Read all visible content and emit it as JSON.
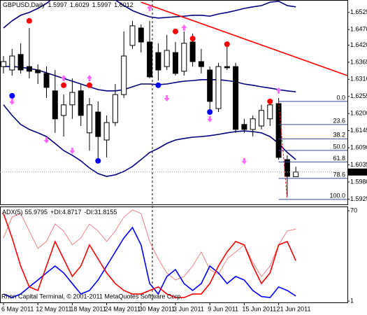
{
  "chart_data": [
    {
      "type": "candlestick",
      "title": "GBPUSD,Daily",
      "categories": [
        "6 May 2011",
        null,
        null,
        null,
        "12 May 2011",
        null,
        null,
        null,
        "18 May 2011",
        null,
        null,
        null,
        "24 May 2011",
        null,
        null,
        null,
        "30 May 2011",
        null,
        null,
        null,
        "3 Jun 2011",
        null,
        null,
        null,
        "9 Jun 2011",
        null,
        null,
        null,
        "15 Jun 2011",
        null,
        null,
        null,
        "21 Jun 2011",
        null,
        null
      ],
      "open": [
        1.6351,
        1.634,
        1.639,
        1.6351,
        1.634,
        1.6329,
        1.6273,
        1.6194,
        1.6228,
        1.6273,
        1.6138,
        1.6205,
        1.6115,
        1.6171,
        1.6261,
        1.6419,
        1.6475,
        1.643,
        1.6396,
        1.6351,
        1.6396,
        1.6336,
        1.643,
        1.6367,
        1.634,
        1.6216,
        1.6351,
        1.6351,
        1.6165,
        1.6149,
        1.616,
        1.6183,
        1.6232,
        1.6052,
        1.5997
      ],
      "high": [
        1.6385,
        1.6408,
        1.6426,
        1.6475,
        1.6358,
        1.6351,
        1.634,
        1.6261,
        1.6313,
        1.6295,
        1.625,
        1.6239,
        1.6194,
        1.6295,
        1.6464,
        1.6498,
        1.6486,
        1.6498,
        1.6426,
        1.6453,
        1.643,
        1.6464,
        1.6457,
        1.6408,
        1.6351,
        1.6363,
        1.6419,
        1.6363,
        1.6183,
        1.6194,
        1.6228,
        1.6239,
        1.625,
        1.6066,
        1.6029
      ],
      "low": [
        1.6329,
        1.6322,
        1.6329,
        1.6313,
        1.6295,
        1.625,
        1.6138,
        1.6126,
        1.6183,
        1.616,
        1.6081,
        1.6048,
        1.6059,
        1.616,
        1.625,
        1.6408,
        1.6396,
        1.6313,
        1.6306,
        1.634,
        1.6322,
        1.6322,
        1.6351,
        1.6329,
        1.6205,
        1.6205,
        1.634,
        1.6138,
        1.6138,
        1.6126,
        1.6149,
        1.616,
        1.6052,
        1.5935,
        1.5997
      ],
      "close": [
        1.6367,
        1.6385,
        1.634,
        1.6336,
        1.6331,
        1.6284,
        1.6183,
        1.6228,
        1.6268,
        1.6194,
        1.6228,
        1.6126,
        1.6171,
        1.6261,
        1.6385,
        1.6482,
        1.643,
        1.6318,
        1.634,
        1.6403,
        1.6329,
        1.6426,
        1.6367,
        1.6351,
        1.6239,
        1.6351,
        1.6347,
        1.6149,
        1.6149,
        1.6183,
        1.621,
        1.6228,
        1.6059,
        1.5998,
        1.6012
      ],
      "up_color": "#ffffff",
      "down_color": "#000000",
      "bands": [
        {
          "color": "#000080",
          "values": [
            1.6475,
            1.6498,
            1.6516,
            1.6525,
            1.6538,
            1.6554,
            1.6576,
            1.6588,
            1.6592,
            1.6592,
            1.6588,
            1.6583,
            1.6576,
            1.6565,
            1.6547,
            1.6531,
            1.652,
            1.6511,
            1.6507,
            1.6509,
            1.6511,
            1.6513,
            1.6516,
            1.6516,
            1.6513,
            1.652,
            1.6525,
            1.6531,
            1.6538,
            1.6543,
            1.6547,
            1.6558,
            1.6561,
            1.6547,
            1.6543
          ]
        },
        {
          "color": "#000080",
          "values": [
            1.6351,
            1.6351,
            1.6349,
            1.6345,
            1.634,
            1.6331,
            1.6322,
            1.6313,
            1.6304,
            1.6295,
            1.6286,
            1.6277,
            1.6273,
            1.6273,
            1.6277,
            1.6286,
            1.6295,
            1.6295,
            1.6293,
            1.6295,
            1.63,
            1.6304,
            1.6306,
            1.6309,
            1.6309,
            1.6309,
            1.6306,
            1.6302,
            1.6295,
            1.6291,
            1.6286,
            1.6282,
            1.6277,
            1.6273,
            1.627
          ]
        },
        {
          "color": "#000080",
          "values": [
            1.6228,
            1.6194,
            1.6165,
            1.6149,
            1.6138,
            1.6126,
            1.6104,
            1.6081,
            1.6066,
            1.6048,
            1.6025,
            1.6007,
            1.5998,
            1.6003,
            1.6014,
            1.603,
            1.6052,
            1.6075,
            1.6088,
            1.6104,
            1.6115,
            1.612,
            1.6124,
            1.6126,
            1.6129,
            1.6133,
            1.6138,
            1.6142,
            1.6144,
            1.6142,
            1.6138,
            1.6126,
            1.6104,
            1.6075,
            1.6052
          ]
        }
      ],
      "trend_line": {
        "color": "#ff0000",
        "x": [
          16,
          40
        ],
        "values": [
          1.6558,
          1.6322
        ]
      },
      "markers": [
        {
          "shape": "dot",
          "color": "#ff0000",
          "x": [
            3,
            7,
            10,
            20,
            22,
            26,
            31
          ],
          "values": [
            1.6498,
            1.6291,
            1.6291,
            1.6464,
            1.6441,
            1.6423,
            1.6239
          ]
        },
        {
          "shape": "dot",
          "color": "#0000ff",
          "x": [
            1,
            11,
            18,
            24
          ],
          "values": [
            1.6257,
            1.6048,
            1.6291,
            1.6205
          ]
        },
        {
          "shape": "arrow-up",
          "color": "#ff66ff",
          "x": [
            7,
            10,
            17,
            21,
            32
          ],
          "values": [
            1.6313,
            1.6313,
            1.6538,
            1.6475,
            1.6273
          ]
        },
        {
          "shape": "arrow-down",
          "color": "#ff66ff",
          "x": [
            1,
            5,
            8,
            19,
            24,
            28
          ],
          "values": [
            1.6239,
            1.6115,
            1.6081,
            1.625,
            1.6183,
            1.6048
          ]
        }
      ],
      "fibonacci": {
        "color": "#3a4a9a",
        "line_color": "#ff0000",
        "x": [
          32,
          33
        ],
        "values": [
          1.6239,
          1.5924
        ],
        "levels": [
          {
            "value": 0,
            "label": "0.0"
          },
          23.6,
          38.2,
          {
            "value": 50,
            "label": "50.0"
          },
          61.8,
          78.6,
          {
            "value": 100,
            "label": "100.0"
          }
        ]
      },
      "ylim": [
        1.5908,
        1.6565
      ],
      "yticks": [
        1.6525,
        {
          "value": 1.647,
          "label": "1.6470"
        },
        {
          "value": 1.642,
          "label": "1.6420"
        },
        1.6365,
        {
          "value": 1.631,
          "label": "1.6310"
        },
        1.6255,
        {
          "value": 1.62,
          "label": "1.6200"
        },
        1.6145,
        {
          "value": 1.609,
          "label": "1.6090"
        },
        1.6035,
        {
          "value": 1.598,
          "label": "1.5980"
        },
        1.5925
      ],
      "grid": false
    },
    {
      "type": "line",
      "series": [
        {
          "name": "ADX(5)",
          "color": "#f08080",
          "width": 1,
          "values": [
            49.2,
            65.2,
            67.9,
            54.5,
            41.2,
            46.5,
            59.9,
            54.5,
            43.9,
            49.2,
            59.9,
            54.5,
            46.5,
            54.5,
            65.2,
            70.6,
            67.9,
            46.5,
            33.2,
            22.5,
            17.1,
            19.8,
            27.8,
            38.5,
            25.1,
            21.4,
            33.2,
            38.5,
            43.9,
            30.5,
            19.8,
            27.8,
            43.9,
            54.5,
            55.9795
          ]
        },
        {
          "name": "+DI:",
          "color": "#0000ff",
          "width": 1.6,
          "values": [
            6.4,
            3.7,
            6.4,
            11.8,
            17.1,
            22.5,
            27.8,
            22.5,
            14.4,
            6.4,
            9.1,
            17.1,
            27.8,
            38.5,
            49.2,
            57.2,
            43.9,
            14.4,
            6.4,
            19.8,
            25.1,
            14.4,
            9.1,
            14.4,
            27.8,
            22.5,
            14.4,
            19.8,
            17.1,
            9.1,
            4.5,
            3.7,
            11.8,
            9.1,
            4.8717
          ]
        },
        {
          "name": "-DI:",
          "color": "#ff0000",
          "width": 1.6,
          "values": [
            67.9,
            49.2,
            27.8,
            11.8,
            9.1,
            27.8,
            46.5,
            33.2,
            19.8,
            27.8,
            43.9,
            33.2,
            22.5,
            14.4,
            9.1,
            6.4,
            6.4,
            9.1,
            11.8,
            6.4,
            3.7,
            3.7,
            6.4,
            6.4,
            14.4,
            27.8,
            38.5,
            46.5,
            43.9,
            27.8,
            14.4,
            22.5,
            43.9,
            46.5,
            31.8155
          ]
        }
      ],
      "watermark": "Rhon Capital Terminal, © 2001-2011 MetaQuotes Software Corp.",
      "ylim": [
        0,
        72.7
      ],
      "yticks": [
        70,
        1
      ],
      "grid": false
    }
  ]
}
